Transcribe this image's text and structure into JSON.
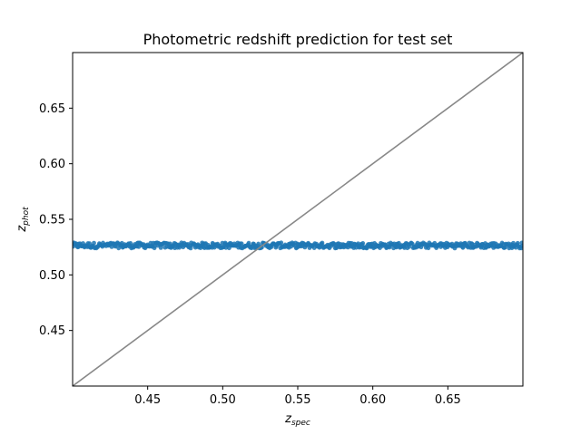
{
  "chart_data": {
    "type": "scatter",
    "title": "Photometric redshift prediction for test set",
    "xlabel": {
      "base": "z",
      "sub": "spec"
    },
    "ylabel": {
      "base": "z",
      "sub": "phot"
    },
    "xlim": [
      0.4,
      0.7
    ],
    "ylim": [
      0.4,
      0.7
    ],
    "xticks": [
      0.45,
      0.5,
      0.55,
      0.6,
      0.65
    ],
    "xtick_labels": [
      "0.45",
      "0.50",
      "0.55",
      "0.60",
      "0.65"
    ],
    "yticks": [
      0.45,
      0.5,
      0.55,
      0.6,
      0.65
    ],
    "ytick_labels": [
      "0.45",
      "0.50",
      "0.55",
      "0.60",
      "0.65"
    ],
    "grid": false,
    "legend": null,
    "series": [
      {
        "kind": "scatter",
        "x_range": [
          0.4,
          0.7
        ],
        "y_center": 0.5265,
        "y_spread": 0.0025,
        "color": "#1f77b4"
      },
      {
        "kind": "line",
        "x": [
          0.4,
          0.7
        ],
        "y": [
          0.4,
          0.7
        ],
        "color": "#888888"
      }
    ]
  }
}
